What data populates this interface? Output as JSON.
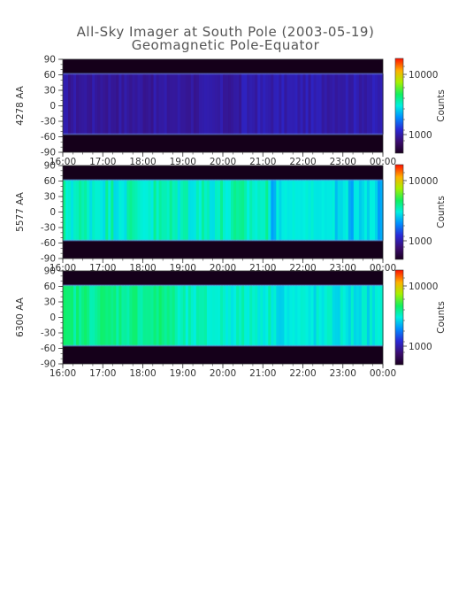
{
  "title": "All-Sky Imager at South Pole (2003-05-19)",
  "subtitle": "Geomagnetic Pole-Equator",
  "chart_data": [
    {
      "type": "heatmap",
      "ylabel": "4278 AA",
      "x_ticks": [
        "16:00",
        "17:00",
        "18:00",
        "19:00",
        "20:00",
        "21:00",
        "22:00",
        "23:00",
        "00:00"
      ],
      "y_ticks": [
        90,
        60,
        30,
        0,
        -30,
        -60,
        -90
      ],
      "ylim": [
        -90,
        90
      ],
      "colorbar": {
        "label": "Counts",
        "ticks": [
          "10000",
          "1000"
        ]
      },
      "signal_band": [
        -55,
        62
      ],
      "level": 0.18,
      "variation": 0.05
    },
    {
      "type": "heatmap",
      "ylabel": "5577 AA",
      "x_ticks": [
        "16:00",
        "17:00",
        "18:00",
        "19:00",
        "20:00",
        "21:00",
        "22:00",
        "23:00",
        "00:00"
      ],
      "y_ticks": [
        90,
        60,
        30,
        0,
        -30,
        -60,
        -90
      ],
      "ylim": [
        -90,
        90
      ],
      "colorbar": {
        "label": "Counts",
        "ticks": [
          "10000",
          "1000"
        ]
      },
      "signal_band": [
        -55,
        62
      ],
      "level": 0.45,
      "variation": 0.12
    },
    {
      "type": "heatmap",
      "ylabel": "6300 AA",
      "x_ticks": [
        "16:00",
        "17:00",
        "18:00",
        "19:00",
        "20:00",
        "21:00",
        "22:00",
        "23:00",
        "00:00"
      ],
      "y_ticks": [
        90,
        60,
        30,
        0,
        -30,
        -60,
        -90
      ],
      "ylim": [
        -90,
        90
      ],
      "colorbar": {
        "label": "Counts",
        "ticks": [
          "10000",
          "1000"
        ]
      },
      "signal_band": [
        -55,
        62
      ],
      "level": 0.52,
      "variation": 0.08
    }
  ]
}
